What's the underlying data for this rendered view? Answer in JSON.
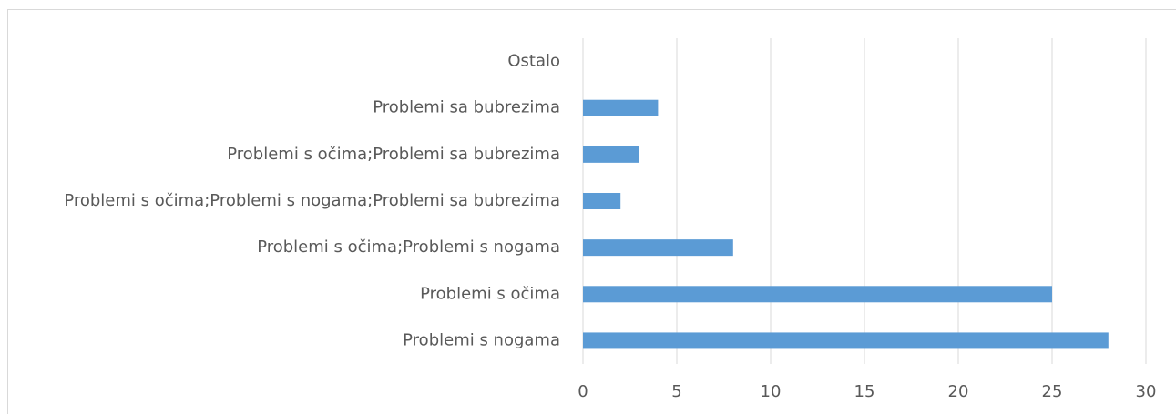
{
  "chart_data": {
    "type": "bar",
    "orientation": "horizontal",
    "categories": [
      "Problemi s nogama",
      "Problemi s očima",
      "Problemi s očima;Problemi s nogama",
      "Problemi s očima;Problemi s nogama;Problemi sa bubrezima",
      "Problemi s očima;Problemi sa bubrezima",
      "Problemi sa bubrezima",
      "Ostalo"
    ],
    "values": [
      28,
      25,
      8,
      2,
      3,
      4,
      0
    ],
    "color": "#5b9bd5",
    "xlim": [
      0,
      30
    ],
    "xticks": [
      0,
      5,
      10,
      15,
      20,
      25,
      30
    ],
    "grid": true
  }
}
